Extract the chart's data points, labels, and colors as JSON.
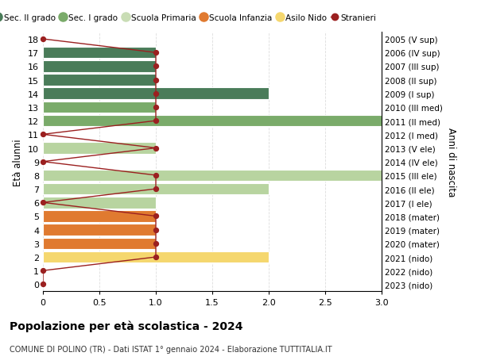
{
  "ages": [
    18,
    17,
    16,
    15,
    14,
    13,
    12,
    11,
    10,
    9,
    8,
    7,
    6,
    5,
    4,
    3,
    2,
    1,
    0
  ],
  "years": [
    "2005 (V sup)",
    "2006 (IV sup)",
    "2007 (III sup)",
    "2008 (II sup)",
    "2009 (I sup)",
    "2010 (III med)",
    "2011 (II med)",
    "2012 (I med)",
    "2013 (V ele)",
    "2014 (IV ele)",
    "2015 (III ele)",
    "2016 (II ele)",
    "2017 (I ele)",
    "2018 (mater)",
    "2019 (mater)",
    "2020 (mater)",
    "2021 (nido)",
    "2022 (nido)",
    "2023 (nido)"
  ],
  "bar_values": [
    0,
    1,
    1,
    1,
    2,
    1,
    3,
    0,
    1,
    0,
    3,
    2,
    1,
    1,
    1,
    1,
    2,
    0,
    0
  ],
  "bar_colors": [
    "#4a7c59",
    "#4a7c59",
    "#4a7c59",
    "#4a7c59",
    "#4a7c59",
    "#7aab6a",
    "#7aab6a",
    "#7aab6a",
    "#b8d4a0",
    "#b8d4a0",
    "#b8d4a0",
    "#b8d4a0",
    "#b8d4a0",
    "#e07a30",
    "#e07a30",
    "#e07a30",
    "#f5d76e",
    "#f5d76e",
    "#f5d76e"
  ],
  "stranieri_x": [
    0,
    1,
    1,
    1,
    1,
    1,
    1,
    0,
    1,
    0,
    1,
    1,
    0,
    1,
    1,
    1,
    1,
    0,
    0
  ],
  "xlim": [
    0,
    3.0
  ],
  "xticks": [
    0,
    0.5,
    1.0,
    1.5,
    2.0,
    2.5,
    3.0
  ],
  "ylabel_left": "Età alunni",
  "ylabel_right": "Anni di nascita",
  "title": "Popolazione per età scolastica - 2024",
  "subtitle": "COMUNE DI POLINO (TR) - Dati ISTAT 1° gennaio 2024 - Elaborazione TUTTITALIA.IT",
  "legend_labels": [
    "Sec. II grado",
    "Sec. I grado",
    "Scuola Primaria",
    "Scuola Infanzia",
    "Asilo Nido",
    "Stranieri"
  ],
  "legend_colors": [
    "#4a7c59",
    "#7aab6a",
    "#c9ddb5",
    "#e07a30",
    "#f5d76e",
    "#c0392b"
  ],
  "stranieri_color": "#9b2020",
  "grid_color": "#dddddd",
  "bg_color": "#ffffff",
  "bar_height": 0.85
}
